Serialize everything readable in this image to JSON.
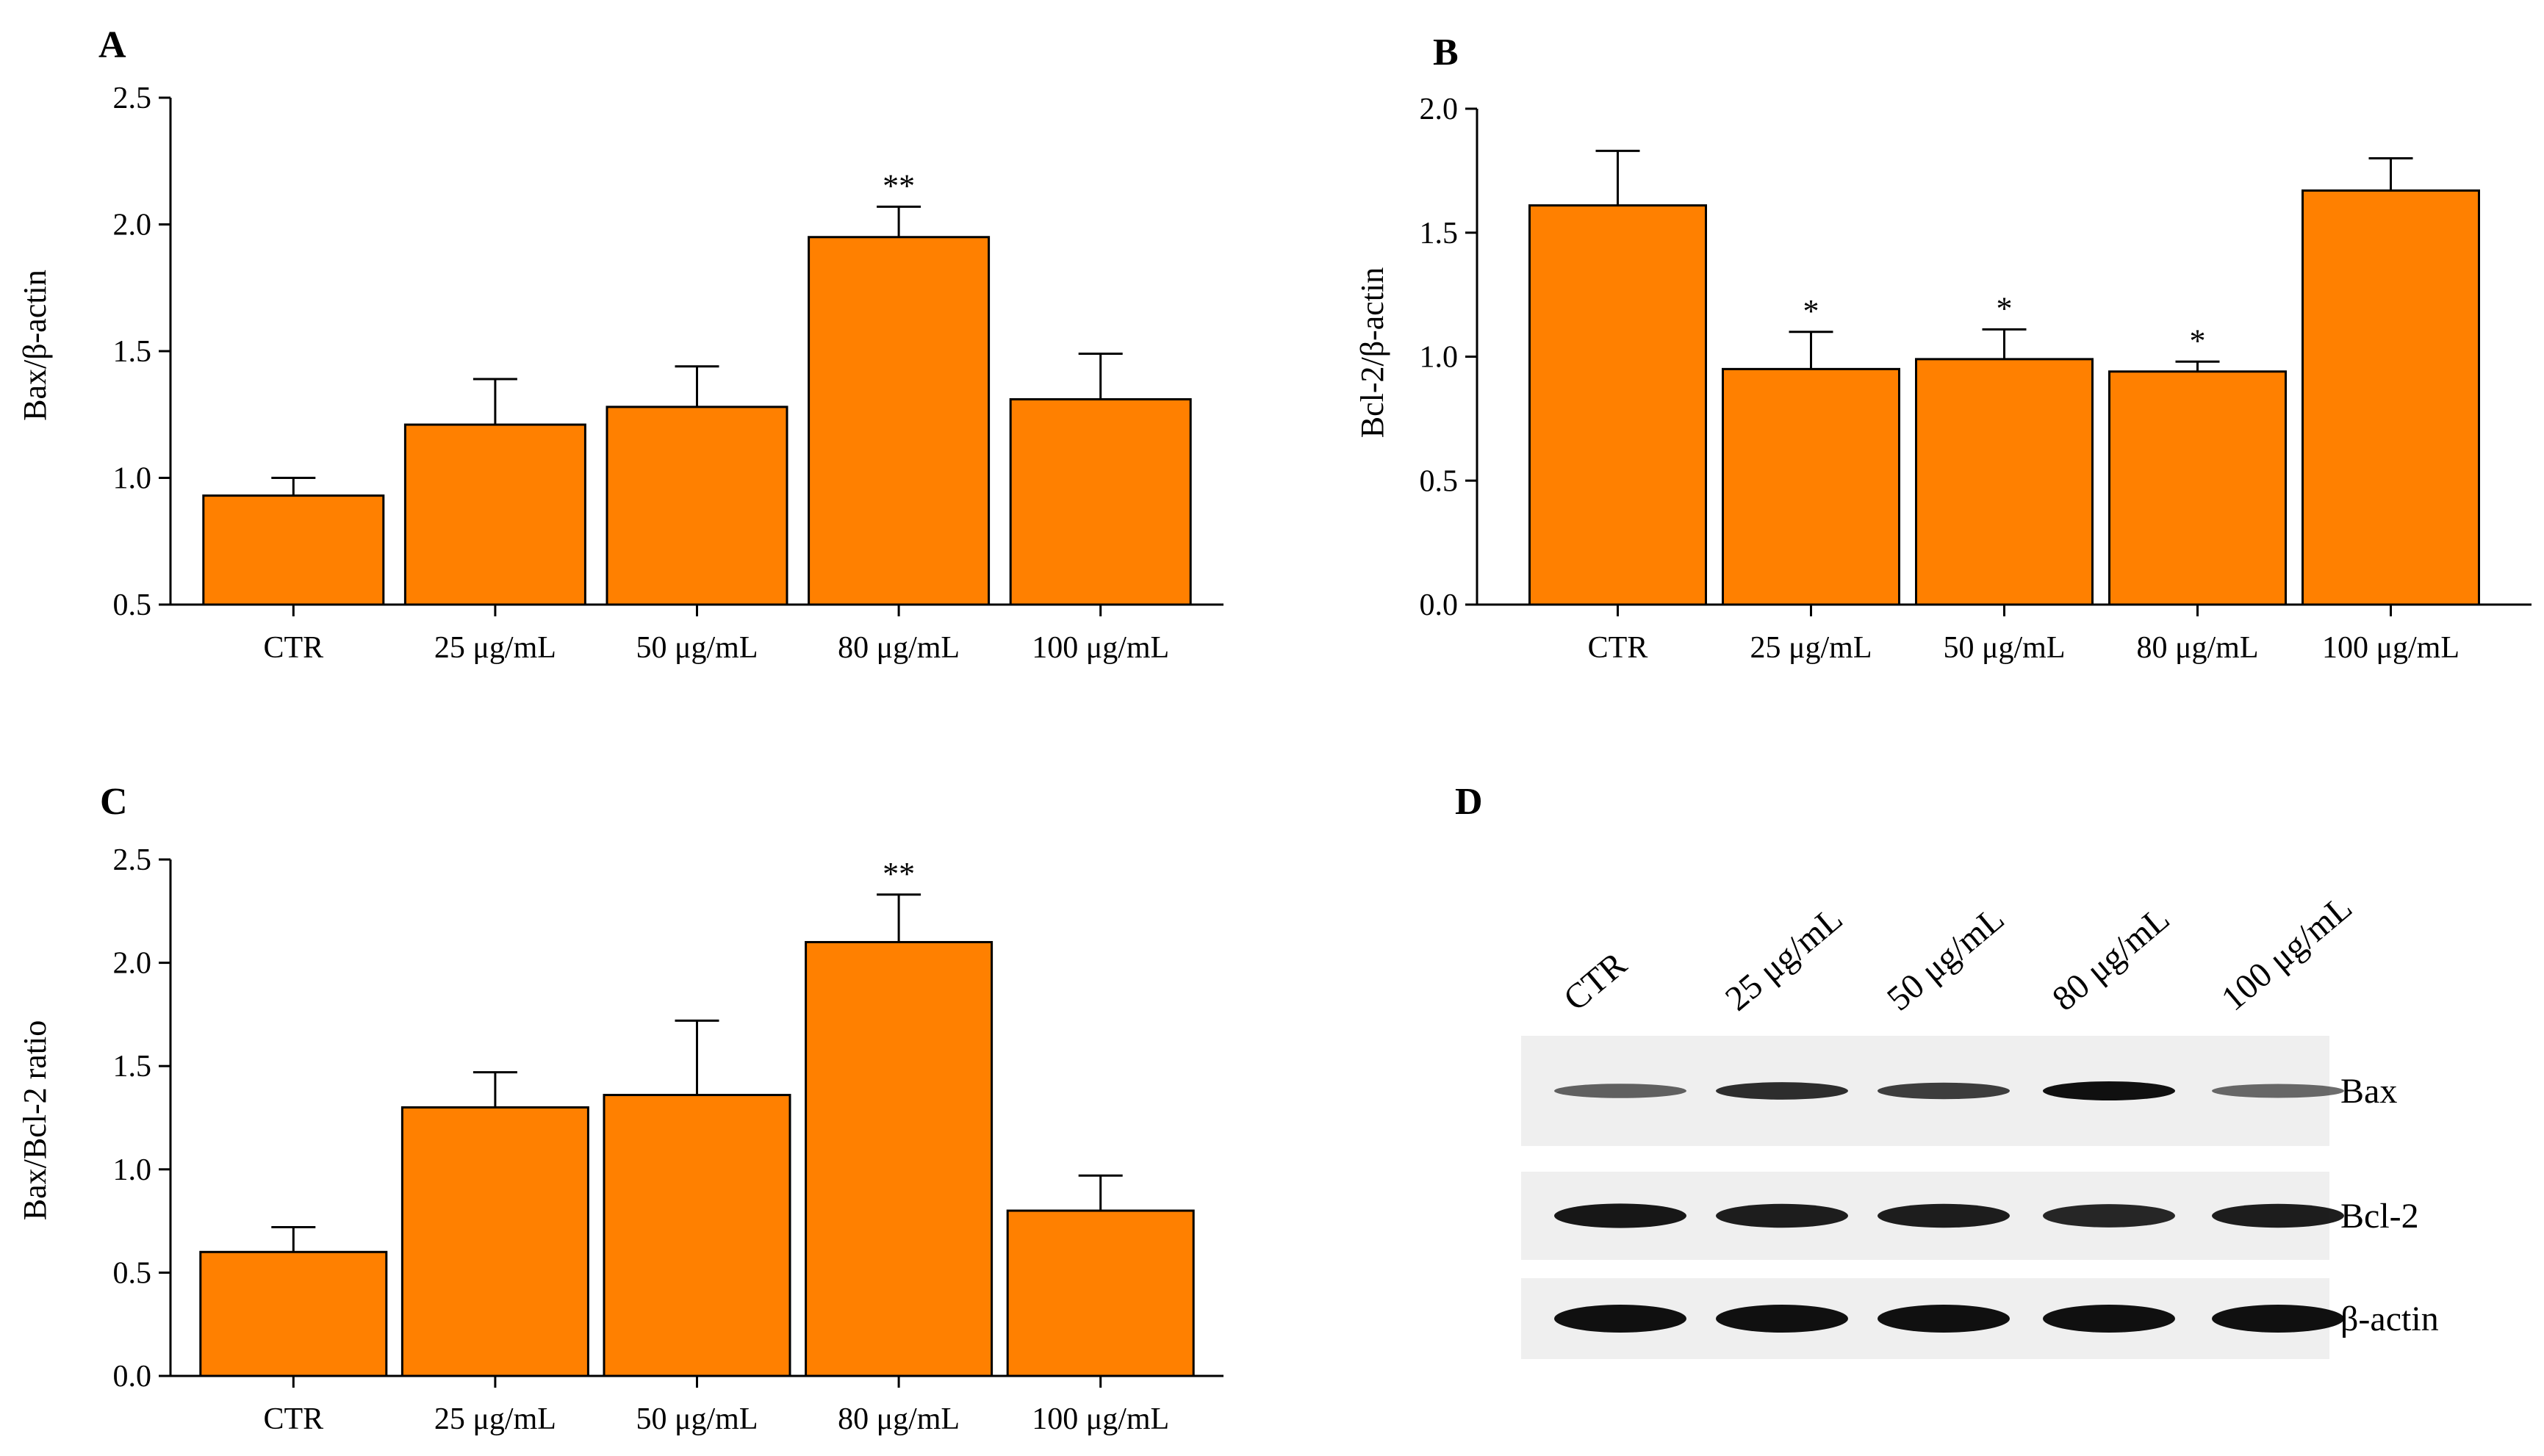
{
  "colors": {
    "bar_fill": "#FF8000",
    "bar_stroke": "#000000",
    "axis": "#000000",
    "blot_background": "#efefef",
    "band": "#101010"
  },
  "chart_data": [
    {
      "id": "A",
      "type": "bar",
      "panel_label": "A",
      "title": "",
      "xlabel": "",
      "ylabel": "Bax/β-actin",
      "categories": [
        "CTR",
        "25 μg/mL",
        "50 μg/mL",
        "80 μg/mL",
        "100 μg/mL"
      ],
      "values": [
        0.93,
        1.21,
        1.28,
        1.95,
        1.31
      ],
      "errors": [
        0.07,
        0.18,
        0.16,
        0.12,
        0.18
      ],
      "significance": [
        "",
        "",
        "",
        "**",
        ""
      ],
      "ylim": [
        0.5,
        2.5
      ],
      "yticks": [
        0.5,
        1.0,
        1.5,
        2.0,
        2.5
      ],
      "ytick_labels": [
        "0.5",
        "1.0",
        "1.5",
        "2.0",
        "2.5"
      ]
    },
    {
      "id": "B",
      "type": "bar",
      "panel_label": "B",
      "title": "",
      "xlabel": "",
      "ylabel": "Bcl-2/β-actin",
      "categories": [
        "CTR",
        "25 μg/mL",
        "50 μg/mL",
        "80 μg/mL",
        "100 μg/mL"
      ],
      "values": [
        1.61,
        0.95,
        0.99,
        0.94,
        1.67
      ],
      "errors": [
        0.22,
        0.15,
        0.12,
        0.04,
        0.13
      ],
      "significance": [
        "",
        "*",
        "*",
        "*",
        ""
      ],
      "ylim": [
        0.0,
        2.0
      ],
      "yticks": [
        0.0,
        0.5,
        1.0,
        1.5,
        2.0
      ],
      "ytick_labels": [
        "0.0",
        "0.5",
        "1.0",
        "1.5",
        "2.0"
      ]
    },
    {
      "id": "C",
      "type": "bar",
      "panel_label": "C",
      "title": "",
      "xlabel": "",
      "ylabel": "Bax/Bcl-2 ratio",
      "categories": [
        "CTR",
        "25 μg/mL",
        "50 μg/mL",
        "80 μg/mL",
        "100 μg/mL"
      ],
      "values": [
        0.6,
        1.3,
        1.36,
        2.1,
        0.8
      ],
      "errors": [
        0.12,
        0.17,
        0.36,
        0.23,
        0.17
      ],
      "significance": [
        "",
        "",
        "",
        "**",
        ""
      ],
      "ylim": [
        0.0,
        2.5
      ],
      "yticks": [
        0.0,
        0.5,
        1.0,
        1.5,
        2.0,
        2.5
      ],
      "ytick_labels": [
        "0.0",
        "0.5",
        "1.0",
        "1.5",
        "2.0",
        "2.5"
      ]
    }
  ],
  "blot": {
    "panel_label": "D",
    "lanes": [
      "CTR",
      "25 μg/mL",
      "50 μg/mL",
      "80 μg/mL",
      "100 μg/mL"
    ],
    "rows": [
      {
        "label": "Bax",
        "intensity": [
          0.45,
          0.8,
          0.7,
          1.0,
          0.4
        ]
      },
      {
        "label": "Bcl-2",
        "intensity": [
          0.95,
          0.9,
          0.9,
          0.85,
          0.9
        ]
      },
      {
        "label": "β-actin",
        "intensity": [
          1.0,
          1.0,
          1.0,
          1.0,
          1.0
        ]
      }
    ]
  }
}
